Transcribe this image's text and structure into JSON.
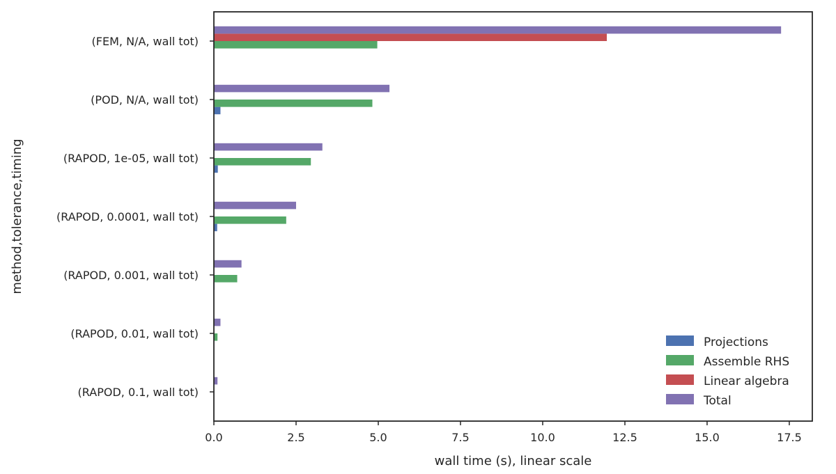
{
  "chart_data": {
    "type": "bar",
    "orientation": "horizontal",
    "xlabel": "wall time (s), linear scale",
    "ylabel": "method,tolerance,timing",
    "xlim": [
      0,
      18.2
    ],
    "xticks": [
      0.0,
      2.5,
      5.0,
      7.5,
      10.0,
      12.5,
      15.0,
      17.5
    ],
    "xtick_labels": [
      "0.0",
      "2.5",
      "5.0",
      "7.5",
      "10.0",
      "12.5",
      "15.0",
      "17.5"
    ],
    "grid": false,
    "legend_position": "bottom-right",
    "categories": [
      "(FEM, N/A, wall tot)",
      "(POD, N/A, wall tot)",
      "(RAPOD, 1e-05, wall tot)",
      "(RAPOD, 0.0001, wall tot)",
      "(RAPOD, 0.001, wall tot)",
      "(RAPOD, 0.01, wall tot)",
      "(RAPOD, 0.1, wall tot)"
    ],
    "series": [
      {
        "name": "Projections",
        "color": "#4c72b0",
        "values": [
          0.0,
          0.2,
          0.12,
          0.1,
          0.02,
          0.01,
          0.0
        ]
      },
      {
        "name": "Assemble RHS",
        "color": "#55a868",
        "values": [
          4.97,
          4.82,
          2.95,
          2.2,
          0.71,
          0.11,
          0.01
        ]
      },
      {
        "name": "Linear algebra",
        "color": "#c44e52",
        "values": [
          11.95,
          0.0,
          0.0,
          0.0,
          0.0,
          0.0,
          0.0
        ]
      },
      {
        "name": "Total",
        "color": "#8172b2",
        "values": [
          17.25,
          5.34,
          3.3,
          2.5,
          0.84,
          0.2,
          0.11
        ]
      }
    ]
  }
}
